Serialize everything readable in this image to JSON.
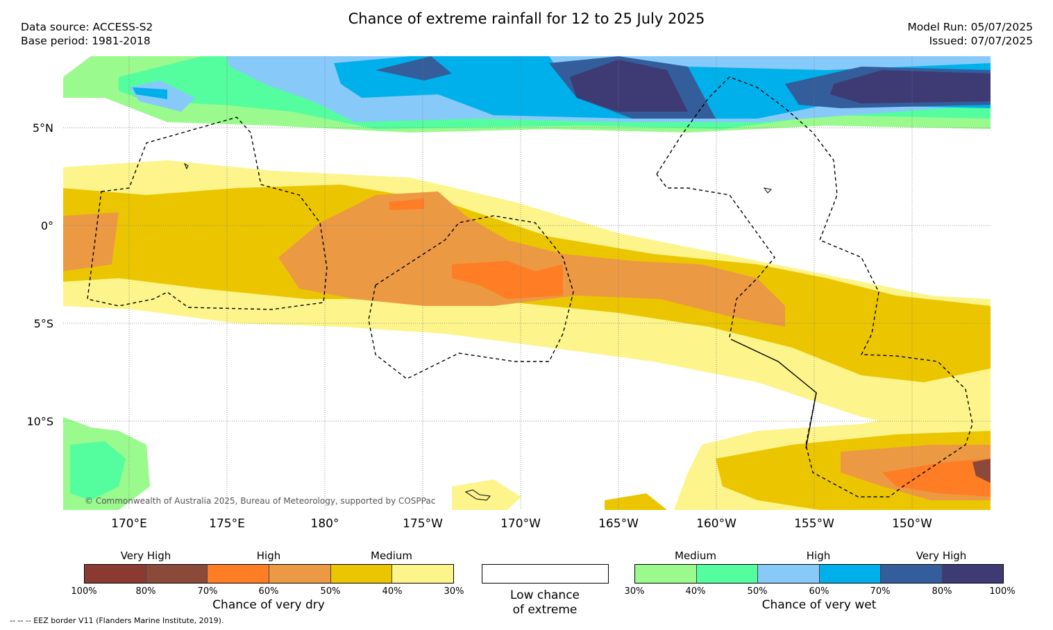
{
  "header": {
    "title": "Chance of extreme rainfall for 12 to 25 July 2025",
    "data_source": "Data source: ACCESS-S2",
    "base_period": "Base period: 1981-2018",
    "model_run": "Model Run: 05/07/2025",
    "issued": "Issued: 07/07/2025"
  },
  "map": {
    "lat_labels": [
      "5°N",
      "0°",
      "5°S",
      "10°S"
    ],
    "lon_labels": [
      "170°E",
      "175°E",
      "180°",
      "175°W",
      "170°W",
      "165°W",
      "160°W",
      "155°W",
      "150°W"
    ],
    "copyright": "© Commonwealth of Australia 2025, Bureau of Meteorology, supported by COSPPac"
  },
  "legend": {
    "dry": {
      "levels": [
        "Very High",
        "High",
        "Medium"
      ],
      "ticks": [
        "100%",
        "80%",
        "70%",
        "60%",
        "50%",
        "40%",
        "30%"
      ],
      "caption": "Chance of very dry",
      "colors": [
        "#8b3a31",
        "#8b4a39",
        "#ff7d24",
        "#ec9944",
        "#ebc600",
        "#fdf58b"
      ]
    },
    "neutral": {
      "caption_line1": "Low chance",
      "caption_line2": "of extreme",
      "color": "#ffffff"
    },
    "wet": {
      "levels": [
        "Medium",
        "High",
        "Very High"
      ],
      "ticks": [
        "30%",
        "40%",
        "50%",
        "60%",
        "70%",
        "80%",
        "100%"
      ],
      "caption": "Chance of very wet",
      "colors": [
        "#9afa8d",
        "#54fd9e",
        "#87cafa",
        "#00b0eb",
        "#335d9b",
        "#3e3a73"
      ]
    }
  },
  "footer": {
    "eez_note": "--  --  -- EEZ border V11 (Flanders Marine Institute, 2019)."
  }
}
